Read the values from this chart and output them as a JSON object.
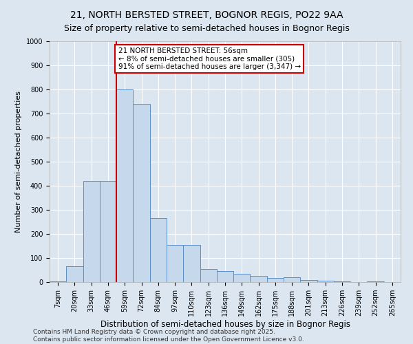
{
  "title": "21, NORTH BERSTED STREET, BOGNOR REGIS, PO22 9AA",
  "subtitle": "Size of property relative to semi-detached houses in Bognor Regis",
  "xlabel": "Distribution of semi-detached houses by size in Bognor Regis",
  "ylabel": "Number of semi-detached properties",
  "categories": [
    "7sqm",
    "20sqm",
    "33sqm",
    "46sqm",
    "59sqm",
    "72sqm",
    "84sqm",
    "97sqm",
    "110sqm",
    "123sqm",
    "136sqm",
    "149sqm",
    "162sqm",
    "175sqm",
    "188sqm",
    "201sqm",
    "213sqm",
    "226sqm",
    "239sqm",
    "252sqm",
    "265sqm"
  ],
  "values": [
    2,
    65,
    420,
    420,
    800,
    740,
    265,
    155,
    155,
    55,
    45,
    35,
    25,
    18,
    20,
    8,
    5,
    2,
    0,
    2,
    0
  ],
  "bar_color": "#c5d8ec",
  "bar_edge_color": "#5b8fc9",
  "vline_x": 3.5,
  "vline_color": "#cc0000",
  "annotation_title": "21 NORTH BERSTED STREET: 56sqm",
  "annotation_line1": "← 8% of semi-detached houses are smaller (305)",
  "annotation_line2": "91% of semi-detached houses are larger (3,347) →",
  "annotation_box_color": "#cc0000",
  "ylim": [
    0,
    1000
  ],
  "yticks": [
    0,
    100,
    200,
    300,
    400,
    500,
    600,
    700,
    800,
    900,
    1000
  ],
  "bg_color": "#dce6f1",
  "footer_line1": "Contains HM Land Registry data © Crown copyright and database right 2025.",
  "footer_line2": "Contains public sector information licensed under the Open Government Licence v3.0.",
  "title_fontsize": 10,
  "xlabel_fontsize": 8.5,
  "ylabel_fontsize": 8,
  "tick_fontsize": 7,
  "footer_fontsize": 6.5,
  "annot_fontsize": 7.5
}
